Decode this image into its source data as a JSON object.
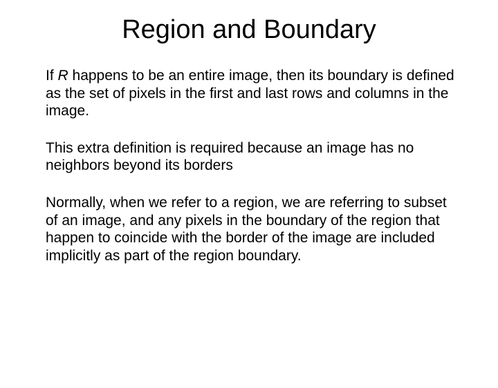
{
  "slide": {
    "title": "Region and Boundary",
    "para1_prefix": "If ",
    "para1_italic": "R",
    "para1_rest": " happens to be an entire image, then its boundary is defined as the set of pixels in the first and last rows and columns in the image.",
    "para2": "This extra definition is required because an image has no neighbors beyond its borders",
    "para3": "Normally, when we refer to a region, we are referring to subset of an image, and any pixels in the boundary of the region that happen to coincide with the border of the image are included implicitly as part of the region boundary."
  },
  "style": {
    "background_color": "#ffffff",
    "text_color": "#000000",
    "title_fontsize": 38,
    "body_fontsize": 21,
    "font_family": "Arial"
  }
}
